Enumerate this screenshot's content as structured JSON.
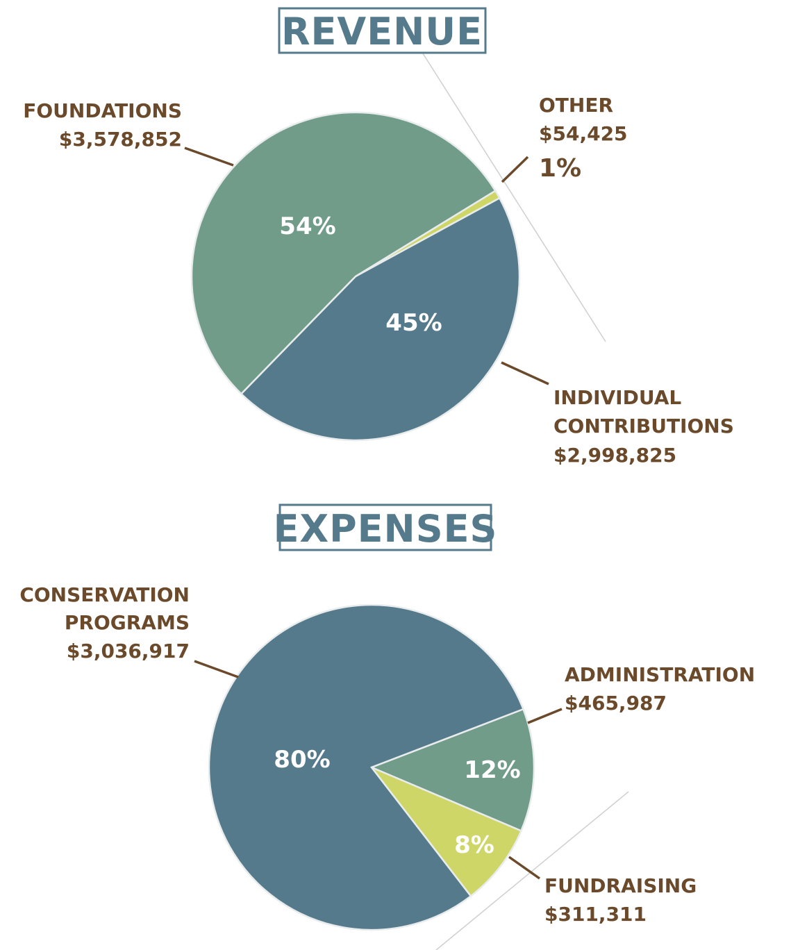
{
  "colors": {
    "blue": "#557a8c",
    "teal": "#719c8a",
    "lime": "#cfd668",
    "label": "#6b4a2b",
    "pct": "#ffffff"
  },
  "chart_data": [
    {
      "type": "pie",
      "title": "REVENUE",
      "slices": [
        {
          "name": "FOUNDATIONS",
          "name_lines": [
            "FOUNDATIONS"
          ],
          "amount": "$3,578,852",
          "value": 3578852,
          "percent_label": "54%",
          "color": "#719c8a"
        },
        {
          "name": "OTHER",
          "name_lines": [
            "OTHER"
          ],
          "amount": "$54,425",
          "value": 54425,
          "percent_label": "1%",
          "color": "#cfd668"
        },
        {
          "name": "INDIVIDUAL CONTRIBUTIONS",
          "name_lines": [
            "INDIVIDUAL",
            "CONTRIBUTIONS"
          ],
          "amount": "$2,998,825",
          "value": 2998825,
          "percent_label": "45%",
          "color": "#557a8c"
        }
      ]
    },
    {
      "type": "pie",
      "title": "EXPENSES",
      "slices": [
        {
          "name": "CONSERVATION PROGRAMS",
          "name_lines": [
            "CONSERVATION",
            "PROGRAMS"
          ],
          "amount": "$3,036,917",
          "value": 3036917,
          "percent_label": "80%",
          "color": "#557a8c"
        },
        {
          "name": "ADMINISTRATION",
          "name_lines": [
            "ADMINISTRATION"
          ],
          "amount": "$465,987",
          "value": 465987,
          "percent_label": "12%",
          "color": "#719c8a"
        },
        {
          "name": "FUNDRAISING",
          "name_lines": [
            "FUNDRAISING"
          ],
          "amount": "$311,311",
          "value": 311311,
          "percent_label": "8%",
          "color": "#cfd668"
        }
      ]
    }
  ]
}
